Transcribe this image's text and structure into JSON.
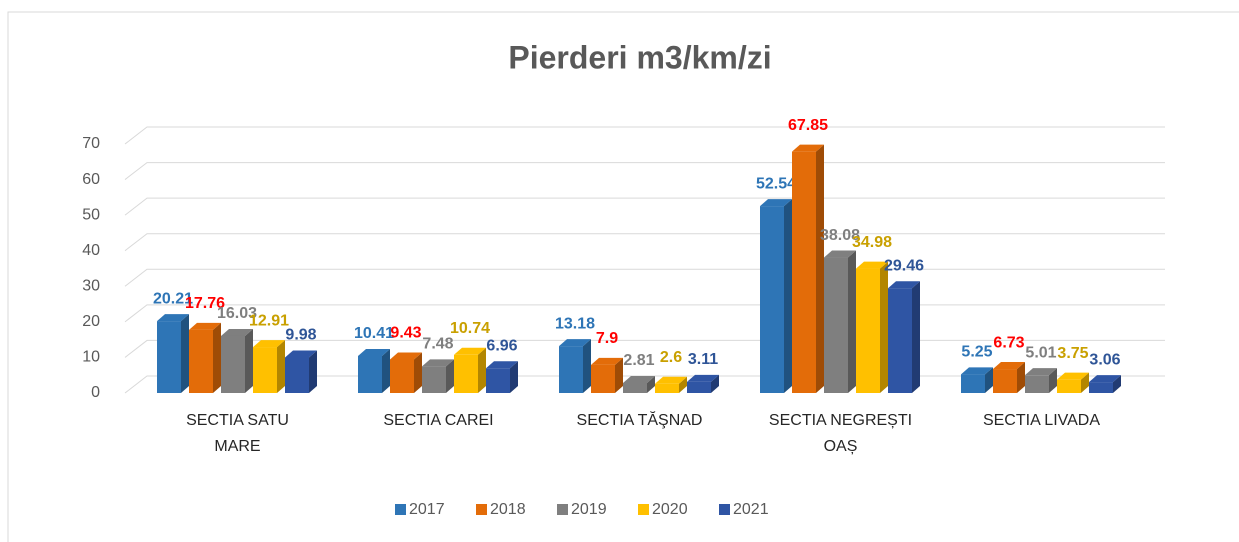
{
  "chart_data": {
    "type": "bar3d",
    "title": "Pierderi m3/km/zi",
    "categories": [
      "SECTIA SATU MARE",
      "SECTIA CAREI",
      "SECTIA TĂŞNAD",
      "SECTIA NEGREȘTI OAȘ",
      "SECTIA LIVADA"
    ],
    "series": [
      {
        "name": "2017",
        "color": "#2e75b6",
        "label_color": "#2e75b6",
        "values": [
          20.21,
          10.41,
          13.18,
          52.54,
          5.25
        ]
      },
      {
        "name": "2018",
        "color": "#e36c09",
        "label_color": "#ff0000",
        "values": [
          17.76,
          9.43,
          7.9,
          67.85,
          6.73
        ]
      },
      {
        "name": "2019",
        "color": "#7f7f7f",
        "label_color": "#7f7f7f",
        "values": [
          16.03,
          7.48,
          2.81,
          38.08,
          5.01
        ]
      },
      {
        "name": "2020",
        "color": "#ffc000",
        "label_color": "#c9a000",
        "values": [
          12.91,
          10.74,
          2.6,
          34.98,
          3.75
        ]
      },
      {
        "name": "2021",
        "color": "#2f55a4",
        "label_color": "#2f5597",
        "values": [
          9.98,
          6.96,
          3.11,
          29.46,
          3.06
        ]
      }
    ],
    "ylim": [
      0,
      70
    ],
    "yticks": [
      0,
      10,
      20,
      30,
      40,
      50,
      60,
      70
    ],
    "grid": true,
    "legend": "bottom"
  }
}
